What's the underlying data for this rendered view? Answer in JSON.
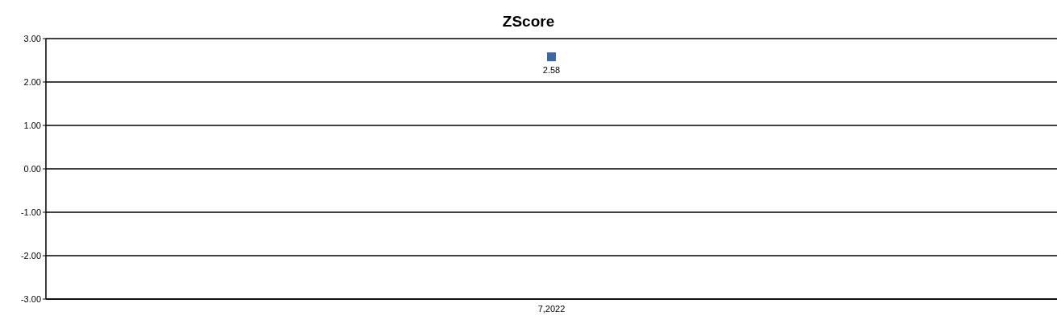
{
  "chart_data": {
    "type": "line",
    "title": "ZScore",
    "categories": [
      "7,2022"
    ],
    "series": [
      {
        "color": "#3d68a0",
        "values": [
          2.58
        ],
        "value_labels": [
          "2.58"
        ]
      }
    ],
    "marker": "square",
    "grid": "y",
    "ylim": [
      -3,
      3
    ],
    "yticks": [
      {
        "value": -3,
        "label": "-3.00"
      },
      {
        "value": -2,
        "label": "-2.00"
      },
      {
        "value": -1,
        "label": "-1.00"
      },
      {
        "value": 0,
        "label": "0.00"
      },
      {
        "value": 1,
        "label": "1.00"
      },
      {
        "value": 2,
        "label": "2.00"
      },
      {
        "value": 3,
        "label": "3.00"
      }
    ]
  }
}
